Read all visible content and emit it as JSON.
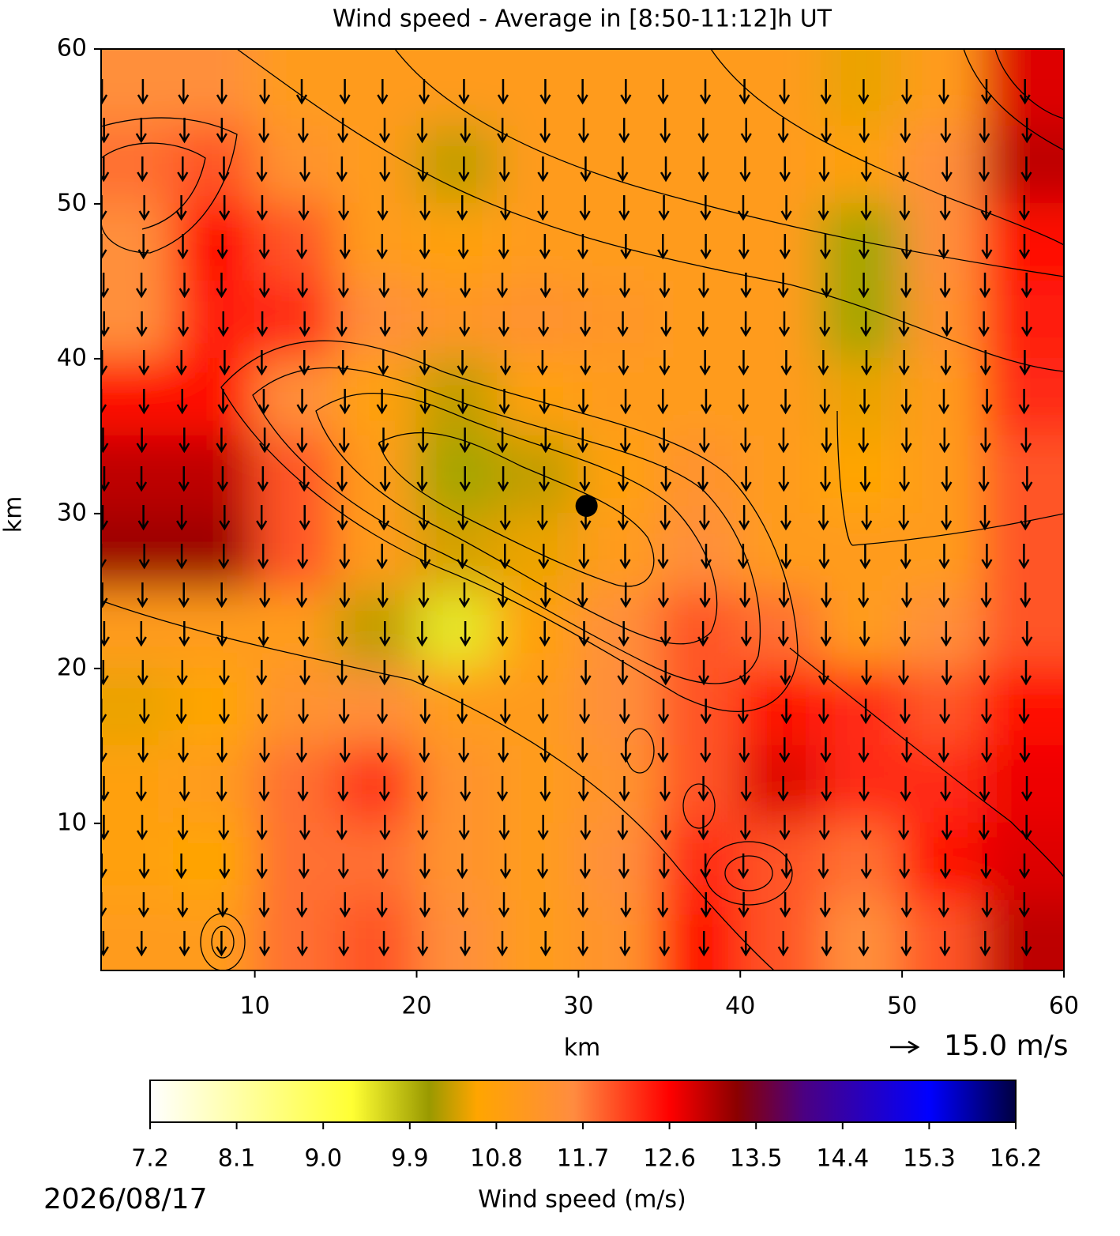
{
  "chart_data": {
    "type": "heatmap",
    "title": "Wind speed - Average in [8:50-11:12]h UT",
    "xlabel": "km",
    "ylabel": "km",
    "xlim": [
      0.5,
      60
    ],
    "ylim": [
      0.5,
      60
    ],
    "xticks": [
      10,
      20,
      30,
      40,
      50,
      60
    ],
    "yticks": [
      10,
      20,
      30,
      40,
      50,
      60
    ],
    "x": [
      2.5,
      7.5,
      12.5,
      17.5,
      22.5,
      27.5,
      32.5,
      37.5,
      42.5,
      47.5,
      52.5,
      57.5
    ],
    "y": [
      57.5,
      52.5,
      47.5,
      42.5,
      37.5,
      32.5,
      27.5,
      22.5,
      17.5,
      12.5,
      7.5,
      2.5
    ],
    "z": [
      [
        11.5,
        11.5,
        11,
        11,
        11,
        11,
        11,
        11,
        11,
        10.5,
        11,
        12.8
      ],
      [
        11.8,
        12,
        11.3,
        11,
        10.3,
        11,
        11,
        11,
        11,
        10.8,
        11.5,
        13
      ],
      [
        11.5,
        12.6,
        12,
        11,
        10.8,
        11,
        11,
        11,
        11,
        10,
        11.5,
        12.5
      ],
      [
        11.5,
        12.4,
        12.3,
        11.5,
        11.2,
        11.3,
        11.2,
        11,
        11,
        10,
        11.3,
        12.4
      ],
      [
        12.5,
        12.5,
        11.5,
        10.8,
        10.3,
        10.8,
        11,
        11,
        11,
        10.5,
        11,
        12.3
      ],
      [
        13,
        13,
        12,
        11,
        10,
        10.3,
        10.8,
        11.3,
        11,
        10.6,
        11,
        12
      ],
      [
        13.2,
        13.2,
        12,
        11,
        10.4,
        10.5,
        11,
        11.5,
        11,
        11,
        11,
        12
      ],
      [
        11,
        11,
        11,
        10.3,
        9.5,
        10.8,
        11.5,
        12,
        11.8,
        11,
        11.5,
        12
      ],
      [
        10.5,
        10.6,
        11.3,
        11.5,
        11,
        11,
        11.5,
        12,
        12.5,
        12.3,
        12,
        12.5
      ],
      [
        10.8,
        11,
        11.8,
        12.2,
        11.3,
        11,
        11.3,
        12,
        12.8,
        12.3,
        12.3,
        12.7
      ],
      [
        10.8,
        10.6,
        11.8,
        11.8,
        11.3,
        11,
        11.5,
        12.3,
        12,
        11.8,
        12.5,
        12.8
      ],
      [
        11,
        11,
        11.8,
        12,
        11.5,
        11,
        11.3,
        12.5,
        12,
        11.5,
        12,
        13
      ]
    ],
    "marker": {
      "x": 30.5,
      "y": 30.5
    },
    "quiver_key": "15.0 m/s",
    "colorbar": {
      "label": "Wind speed (m/s)",
      "lim": [
        7.2,
        16.2
      ],
      "ticks": [
        7.2,
        8.1,
        {
          "value": 9,
          "label": "9.0"
        },
        9.9,
        10.8,
        11.7,
        12.6,
        13.5,
        14.4,
        15.3,
        16.2
      ],
      "colorscale": [
        [
          7.2,
          "#ffffff"
        ],
        [
          9.3,
          "#ffff33"
        ],
        [
          10.1,
          "#999900"
        ],
        [
          10.6,
          "#ffa500"
        ],
        [
          11.6,
          "#ff8c40"
        ],
        [
          12.6,
          "#ff0000"
        ],
        [
          13.3,
          "#8b0000"
        ],
        [
          14.0,
          "#4b0082"
        ],
        [
          15.3,
          "#0000ff"
        ],
        [
          16.2,
          "#000040"
        ]
      ]
    },
    "date": "2026/08/17"
  }
}
